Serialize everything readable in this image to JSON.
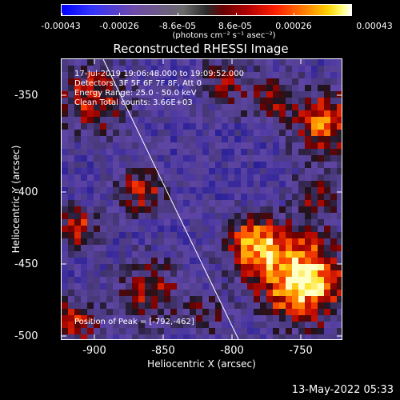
{
  "colorbar": {
    "tick_labels": [
      "-0.00043",
      "-0.00026",
      "-8.6e-05",
      "8.6e-05",
      "0.00026",
      "0.00043"
    ],
    "units": "(photons cm⁻² s⁻¹ asec⁻²)",
    "colors": [
      "#0000ff",
      "#6f4aa8",
      "#2a2a2a",
      "#b00000",
      "#ff8000",
      "#ffffff"
    ]
  },
  "title": "Reconstructed RHESSI Image",
  "annotations": {
    "time_range": "17-Jul-2019 19:06:48.000 to 19:09:52.000",
    "detectors": "Detectors: 3F 5F 6F 7F 8F, Att 0",
    "energy": "Energy Range: 25.0 - 50.0 keV",
    "method": "Clean     Total counts: 3.66E+03",
    "peak": "Position of Peak = [-792,-462]"
  },
  "axes": {
    "xlabel": "Heliocentric X (arcsec)",
    "ylabel": "Heliocentric Y (arcsec)",
    "xtick_labels": [
      "-900",
      "-850",
      "-800",
      "-750"
    ],
    "ytick_labels": [
      "-350",
      "-400",
      "-450",
      "-500"
    ]
  },
  "datestamp": "13-May-2022 05:33"
}
